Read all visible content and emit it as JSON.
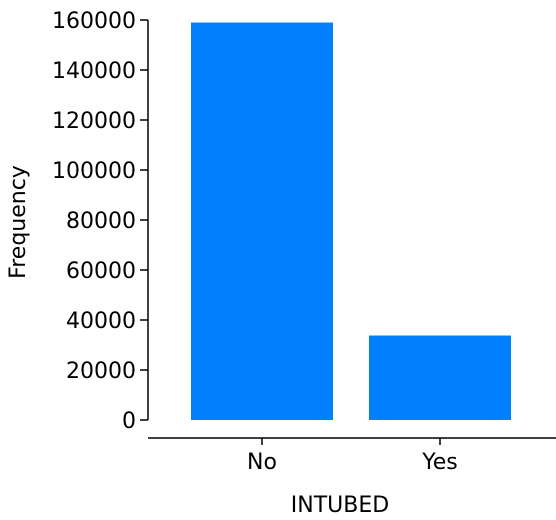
{
  "chart_data": {
    "type": "bar",
    "categories": [
      "No",
      "Yes"
    ],
    "values": [
      159000,
      33800
    ],
    "xlabel": "INTUBED",
    "ylabel": "Frequency",
    "ylim": [
      0,
      160000
    ],
    "yticks": [
      0,
      20000,
      40000,
      60000,
      80000,
      100000,
      120000,
      140000,
      160000
    ],
    "ytick_labels": [
      "0",
      "20000",
      "40000",
      "60000",
      "80000",
      "100000",
      "120000",
      "140000",
      "160000"
    ],
    "grid": false,
    "bar_color": "#0080ff"
  }
}
